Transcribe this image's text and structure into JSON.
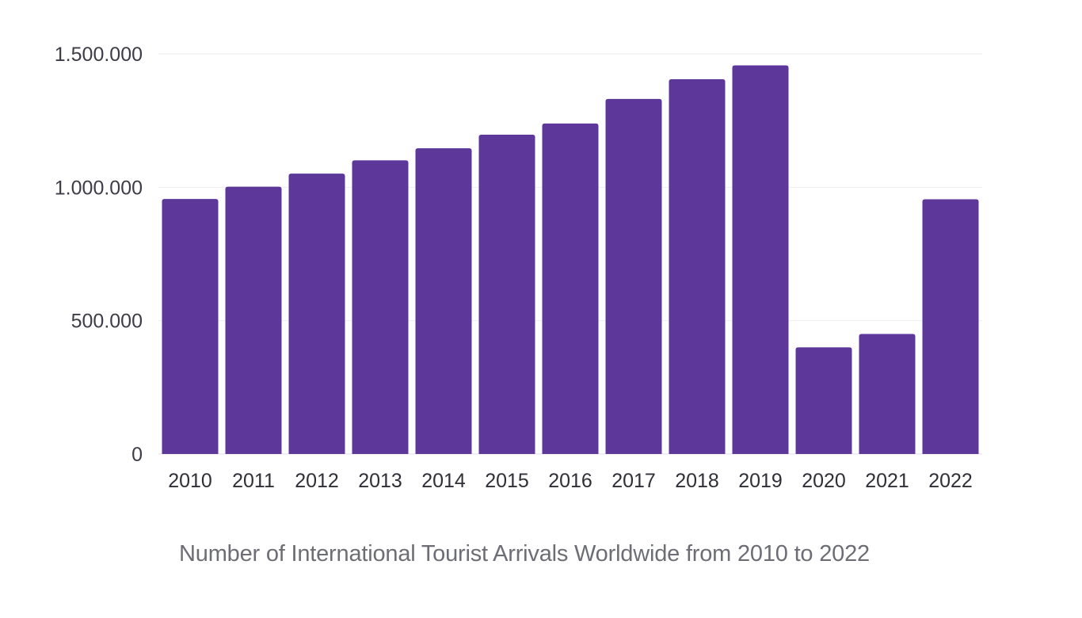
{
  "chart_data": {
    "type": "bar",
    "title": "Number of International Tourist Arrivals Worldwide from 2010 to 2022",
    "xlabel": "",
    "ylabel": "",
    "categories": [
      "2010",
      "2011",
      "2012",
      "2013",
      "2014",
      "2015",
      "2016",
      "2017",
      "2018",
      "2019",
      "2020",
      "2021",
      "2022"
    ],
    "values": [
      956000,
      1002000,
      1051000,
      1101000,
      1146000,
      1197000,
      1239000,
      1331000,
      1405000,
      1457000,
      400000,
      450000,
      955000
    ],
    "ylim": [
      0,
      1500000
    ],
    "yticks": [
      {
        "value": 0,
        "label": "0"
      },
      {
        "value": 500000,
        "label": "500.000"
      },
      {
        "value": 1000000,
        "label": "1.000.000"
      },
      {
        "value": 1500000,
        "label": "1.500.000"
      }
    ],
    "grid": true,
    "legend": "none",
    "colors": {
      "bar": "#5e379b",
      "grid": "#eeeeee",
      "tick_text": "#3d3d48",
      "caption_text": "#6d6e75"
    }
  }
}
